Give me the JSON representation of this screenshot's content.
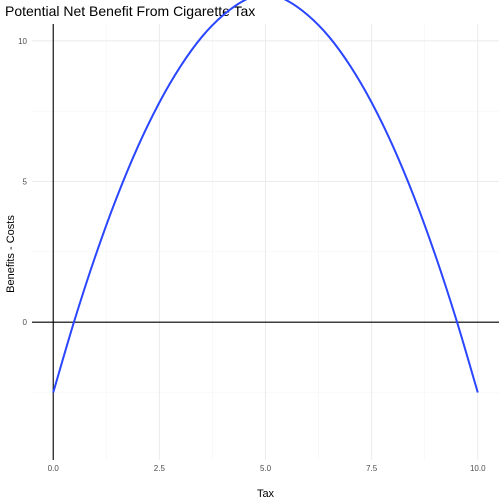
{
  "chart_data": {
    "type": "line",
    "title": "Potential Net Benefit From Cigarette Tax",
    "xlabel": "Tax",
    "ylabel": "Benefits - Costs",
    "xlim": [
      -0.5,
      10.5
    ],
    "ylim": [
      -4.9,
      10.6
    ],
    "x_ticks": [
      "0.0",
      "2.5",
      "5.0",
      "7.5",
      "10.0"
    ],
    "x_tick_values": [
      0,
      2.5,
      5,
      7.5,
      10
    ],
    "y_ticks": [
      "0",
      "5",
      "10"
    ],
    "y_tick_values": [
      0,
      5,
      10
    ],
    "x_minor_values": [
      1.25,
      3.75,
      6.25,
      8.75
    ],
    "y_minor_values": [
      -2.5,
      2.5,
      7.5
    ],
    "reference_lines": {
      "hline_y": 0,
      "vline_x": 0
    },
    "grid": true,
    "series": [
      {
        "color": "#2a46ff",
        "x": [
          0,
          0.5,
          1,
          1.5,
          2,
          2.5,
          3,
          3.5,
          4,
          4.5,
          5,
          5.5,
          6,
          6.5,
          7,
          7.5,
          8,
          8.5,
          9,
          9.5,
          10
        ],
        "y": [
          -2.5,
          0.06,
          2.38,
          4.45,
          6.26,
          7.81,
          9.1,
          10.14,
          10.91,
          11.44,
          11.7,
          11.44,
          10.91,
          10.14,
          9.1,
          7.81,
          6.26,
          4.45,
          2.38,
          0.06,
          -2.5
        ]
      }
    ]
  }
}
